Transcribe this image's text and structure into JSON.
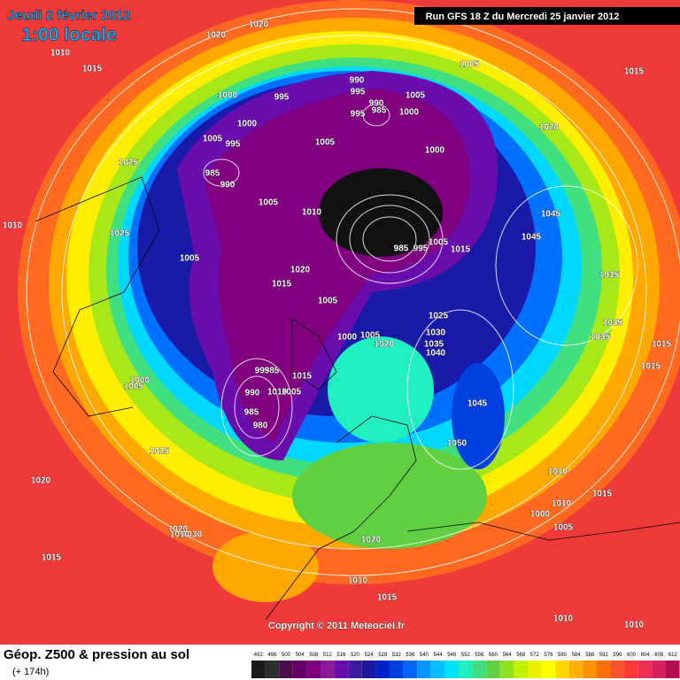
{
  "header": {
    "date": "Jeudi 2 février 2012",
    "time": "1:00 locale",
    "run": "Run GFS 18 Z du Mercredi 25 janvier 2012"
  },
  "isobar_labels": [
    "1020",
    "1020",
    "1010",
    "1015",
    "1005",
    "1015",
    "990",
    "995",
    "1000",
    "995",
    "1005",
    "990",
    "985",
    "995",
    "1000",
    "1000",
    "1020",
    "1005",
    "995",
    "1005",
    "1000",
    "1025",
    "985",
    "990",
    "1005",
    "1010",
    "1045",
    "1010",
    "1025",
    "1045",
    "985",
    "995",
    "1005",
    "1015",
    "1005",
    "1020",
    "1035",
    "1015",
    "1005",
    "1025",
    "1035",
    "1030",
    "1000",
    "1005",
    "1020",
    "1035",
    "1035",
    "1015",
    "1040",
    "1015",
    "995",
    "985",
    "1015",
    "1000",
    "1005",
    "990",
    "1010",
    "1005",
    "1045",
    "985",
    "980",
    "1050",
    "1025",
    "1010",
    "1020",
    "1015",
    "1010",
    "1000",
    "1005",
    "1020",
    "1030",
    "1010",
    "1020",
    "1015",
    "1010",
    "1015",
    "1010",
    "1010"
  ],
  "copyright": "Copyright © 2011 Meteociel.fr",
  "footer": {
    "title": "Géop. Z500 & pression au sol",
    "lead": "(+ 174h)"
  },
  "scale": {
    "labels": [
      "492",
      "496",
      "500",
      "504",
      "508",
      "512",
      "516",
      "520",
      "524",
      "528",
      "532",
      "536",
      "540",
      "544",
      "548",
      "552",
      "556",
      "560",
      "564",
      "568",
      "572",
      "576",
      "580",
      "584",
      "588",
      "592",
      "596",
      "600",
      "604",
      "608",
      "612"
    ],
    "colors": [
      "#1a1a1a",
      "#2e2e2e",
      "#4b0d4b",
      "#660066",
      "#800080",
      "#8a1a9a",
      "#6a0dad",
      "#3d1a9a",
      "#1a1aa0",
      "#0022cc",
      "#0040e0",
      "#0066ff",
      "#0099ff",
      "#00c0ff",
      "#00e0ff",
      "#20f0c0",
      "#40e080",
      "#60d040",
      "#90e020",
      "#c0f000",
      "#e8f000",
      "#ffff00",
      "#ffd800",
      "#ffb000",
      "#ff9000",
      "#ff7000",
      "#ff5030",
      "#ff3838",
      "#f03050",
      "#d82060",
      "#b01050"
    ]
  }
}
